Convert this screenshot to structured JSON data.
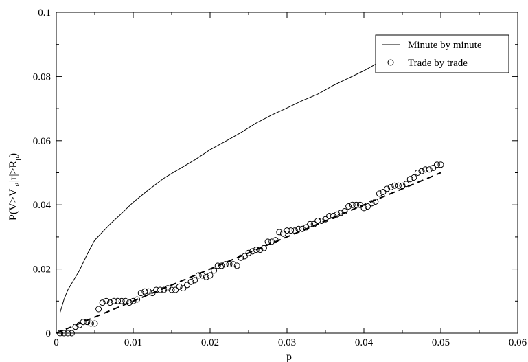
{
  "chart_data": {
    "type": "line",
    "title": "",
    "xlabel": "p",
    "ylabel_parts": {
      "p1": "P(V>V",
      "s1": "p",
      "p2": ",|r|>R",
      "s2": "p",
      "p3": ")"
    },
    "xlim": [
      0,
      0.06
    ],
    "ylim": [
      0,
      0.1
    ],
    "grid": false,
    "legend_position": "top-right",
    "x_ticks": [
      {
        "v": 0,
        "label": "0"
      },
      {
        "v": 0.01,
        "label": "0.01"
      },
      {
        "v": 0.02,
        "label": "0.02"
      },
      {
        "v": 0.03,
        "label": "0.03"
      },
      {
        "v": 0.04,
        "label": "0.04"
      },
      {
        "v": 0.05,
        "label": "0.05"
      },
      {
        "v": 0.06,
        "label": "0.06"
      }
    ],
    "y_ticks": [
      {
        "v": 0,
        "label": "0"
      },
      {
        "v": 0.02,
        "label": "0.02"
      },
      {
        "v": 0.04,
        "label": "0.04"
      },
      {
        "v": 0.06,
        "label": "0.06"
      },
      {
        "v": 0.08,
        "label": "0.08"
      },
      {
        "v": 0.1,
        "label": "0.1"
      }
    ],
    "series": [
      {
        "name": "Minute by minute",
        "style": "line",
        "color": "#000000",
        "x": [
          0.0005,
          0.001,
          0.0015,
          0.002,
          0.003,
          0.004,
          0.005,
          0.006,
          0.007,
          0.008,
          0.009,
          0.01,
          0.012,
          0.014,
          0.016,
          0.018,
          0.02,
          0.022,
          0.024,
          0.026,
          0.028,
          0.03,
          0.032,
          0.034,
          0.036,
          0.038,
          0.04,
          0.042
        ],
        "y": [
          0.0065,
          0.0105,
          0.0135,
          0.0155,
          0.0195,
          0.0245,
          0.029,
          0.0315,
          0.034,
          0.0362,
          0.0385,
          0.0408,
          0.0447,
          0.0483,
          0.0512,
          0.054,
          0.0572,
          0.0598,
          0.0625,
          0.0655,
          0.068,
          0.0702,
          0.0725,
          0.0745,
          0.0772,
          0.0795,
          0.0818,
          0.0845
        ]
      },
      {
        "name": "Trade by trade",
        "style": "markers",
        "marker": "open-circle",
        "color": "#000000",
        "x": [
          0.0005,
          0.001,
          0.0015,
          0.002,
          0.0025,
          0.003,
          0.0035,
          0.004,
          0.0045,
          0.005,
          0.0055,
          0.006,
          0.0065,
          0.007,
          0.0075,
          0.008,
          0.0085,
          0.009,
          0.0095,
          0.01,
          0.0105,
          0.011,
          0.0115,
          0.012,
          0.0125,
          0.013,
          0.0135,
          0.014,
          0.0145,
          0.015,
          0.0155,
          0.016,
          0.0165,
          0.017,
          0.0175,
          0.018,
          0.0185,
          0.019,
          0.0195,
          0.02,
          0.0205,
          0.021,
          0.0215,
          0.022,
          0.0225,
          0.023,
          0.0235,
          0.024,
          0.0245,
          0.025,
          0.0255,
          0.026,
          0.0265,
          0.027,
          0.0275,
          0.028,
          0.0285,
          0.029,
          0.0295,
          0.03,
          0.0305,
          0.031,
          0.0315,
          0.032,
          0.0325,
          0.033,
          0.0335,
          0.034,
          0.0345,
          0.035,
          0.0355,
          0.036,
          0.0365,
          0.037,
          0.0375,
          0.038,
          0.0385,
          0.039,
          0.0395,
          0.04,
          0.0405,
          0.041,
          0.0415,
          0.042,
          0.0425,
          0.043,
          0.0435,
          0.044,
          0.0445,
          0.045,
          0.0455,
          0.046,
          0.0465,
          0.047,
          0.0475,
          0.048,
          0.0485,
          0.049,
          0.0495,
          0.05
        ],
        "y": [
          0.0,
          0.0,
          0.0,
          0.0,
          0.002,
          0.0025,
          0.0035,
          0.0035,
          0.003,
          0.003,
          0.0075,
          0.0095,
          0.01,
          0.0095,
          0.01,
          0.01,
          0.01,
          0.01,
          0.0095,
          0.01,
          0.0105,
          0.0125,
          0.013,
          0.013,
          0.0125,
          0.0135,
          0.0135,
          0.0135,
          0.014,
          0.0135,
          0.0135,
          0.0145,
          0.014,
          0.015,
          0.016,
          0.0165,
          0.018,
          0.018,
          0.0175,
          0.018,
          0.0195,
          0.021,
          0.021,
          0.0215,
          0.0215,
          0.0215,
          0.021,
          0.0235,
          0.024,
          0.025,
          0.0255,
          0.026,
          0.026,
          0.0265,
          0.0285,
          0.0285,
          0.029,
          0.0315,
          0.031,
          0.032,
          0.032,
          0.032,
          0.0325,
          0.0325,
          0.033,
          0.034,
          0.034,
          0.035,
          0.035,
          0.0355,
          0.0365,
          0.0365,
          0.037,
          0.0375,
          0.038,
          0.0395,
          0.04,
          0.04,
          0.04,
          0.039,
          0.0395,
          0.0405,
          0.041,
          0.0435,
          0.044,
          0.045,
          0.0455,
          0.046,
          0.046,
          0.046,
          0.0465,
          0.048,
          0.0485,
          0.05,
          0.0505,
          0.051,
          0.051,
          0.0515,
          0.0525,
          0.0525
        ]
      },
      {
        "name": "",
        "style": "dashed",
        "color": "#000000",
        "x": [
          0,
          0.05
        ],
        "y": [
          0,
          0.05
        ]
      }
    ]
  }
}
